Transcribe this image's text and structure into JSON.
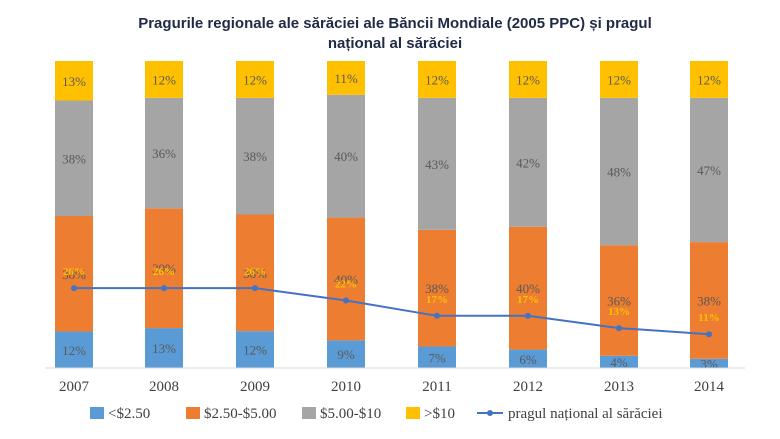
{
  "chart_data": {
    "type": "bar",
    "stacked": true,
    "title_lines": [
      "Pragurile regionale ale sărăciei ale Băncii Mondiale (2005 PPC) și pragul",
      "național al sărăciei"
    ],
    "categories": [
      "2007",
      "2008",
      "2009",
      "2010",
      "2011",
      "2012",
      "2013",
      "2014"
    ],
    "series": [
      {
        "name": "<$2.50",
        "color": "#5b9bd5",
        "values": [
          12,
          13,
          12,
          9,
          7,
          6,
          4,
          3
        ],
        "labels": [
          "12%",
          "13%",
          "12%",
          "9%",
          "7%",
          "6%",
          "4%",
          "3%"
        ]
      },
      {
        "name": "$2.50-$5.00",
        "color": "#ed7d31",
        "values": [
          38,
          39,
          38,
          40,
          38,
          40,
          36,
          38
        ],
        "labels": [
          "38%",
          "39%",
          "38%",
          "40%",
          "38%",
          "40%",
          "36%",
          "38%"
        ]
      },
      {
        "name": "$5.00-$10",
        "color": "#a5a5a5",
        "values": [
          38,
          36,
          38,
          40,
          43,
          42,
          48,
          47
        ],
        "labels": [
          "38%",
          "36%",
          "38%",
          "40%",
          "43%",
          "42%",
          "48%",
          "47%"
        ]
      },
      {
        "name": ">$10",
        "color": "#ffc000",
        "values": [
          13,
          12,
          12,
          11,
          12,
          12,
          12,
          12
        ],
        "labels": [
          "13%",
          "12%",
          "12%",
          "11%",
          "12%",
          "12%",
          "12%",
          "12%"
        ]
      }
    ],
    "line_series": {
      "name": "pragul național al sărăciei",
      "color": "#4472c4",
      "values": [
        26,
        26,
        26,
        22,
        17,
        17,
        13,
        11
      ],
      "labels": [
        "26%",
        "26%",
        "26%",
        "22%",
        "17%",
        "17%",
        "13%",
        "11%"
      ]
    },
    "ylim": [
      0,
      100
    ],
    "grid": false,
    "legend_position": "bottom"
  }
}
